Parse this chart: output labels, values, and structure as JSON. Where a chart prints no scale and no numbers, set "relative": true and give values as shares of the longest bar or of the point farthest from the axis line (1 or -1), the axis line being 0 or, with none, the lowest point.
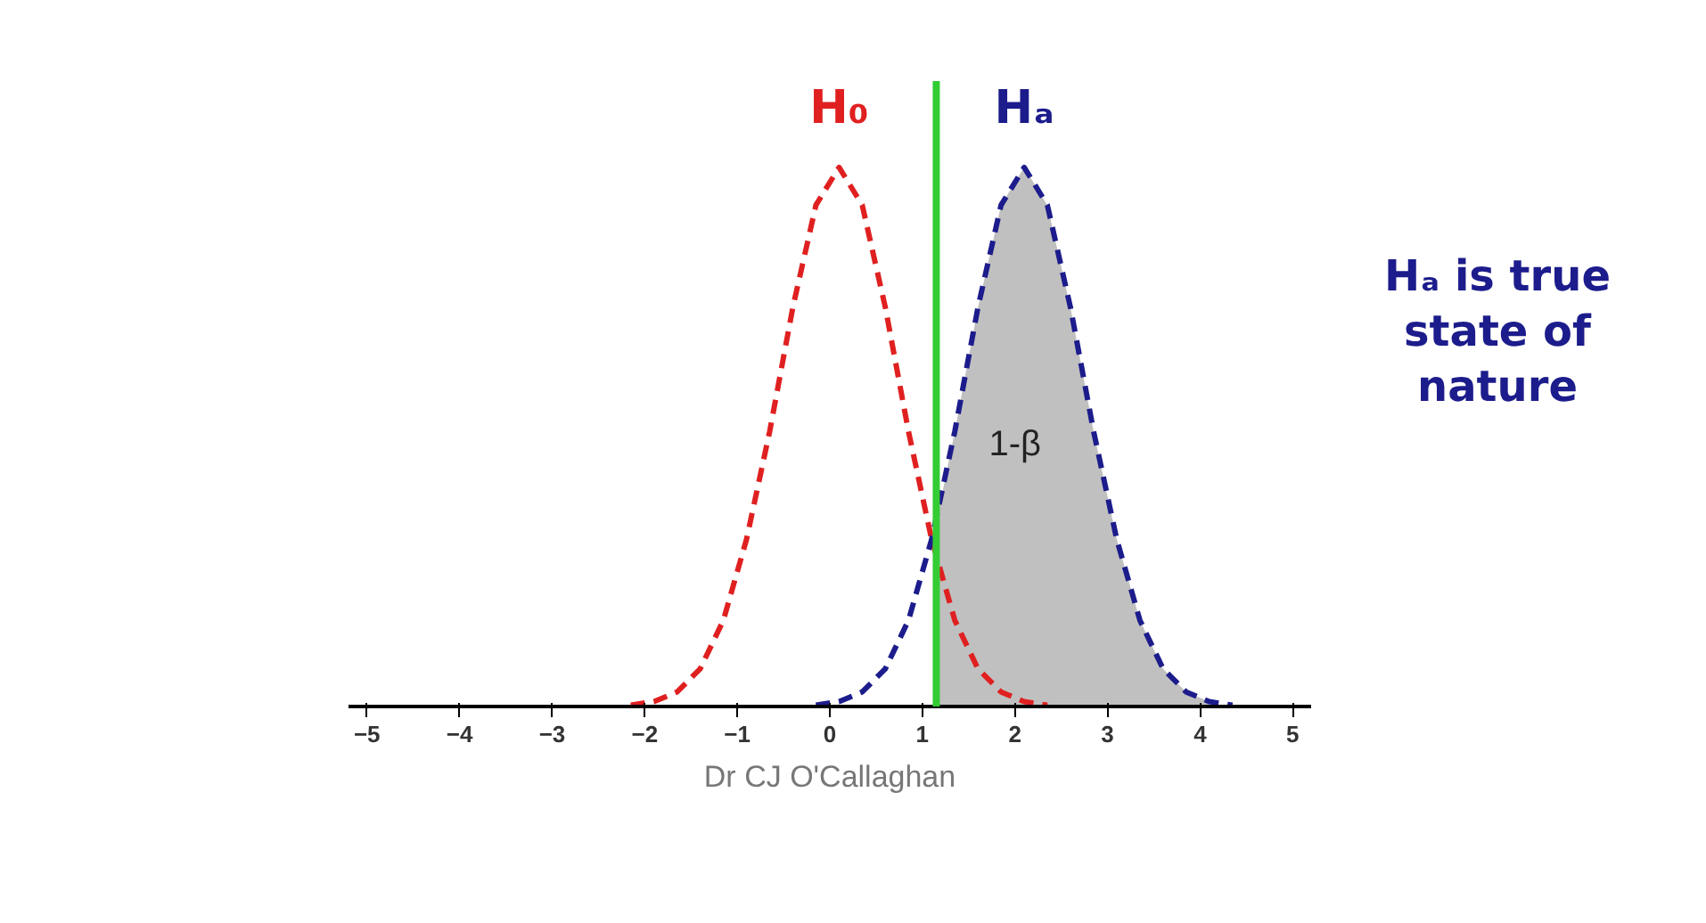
{
  "chart_data": {
    "type": "line",
    "relative": true,
    "xlim": [
      -5.2,
      5.2
    ],
    "xticks": [
      -5,
      -4,
      -3,
      -2,
      -1,
      0,
      1,
      2,
      3,
      4,
      5
    ],
    "tick_labels": "x",
    "grid": false,
    "legend": false,
    "line_style": "dashed",
    "marker": "none",
    "series": [
      {
        "type": "area",
        "color": "#c0c0c0",
        "x": [
          1.15,
          1.35,
          1.6,
          1.85,
          2.1,
          2.35,
          2.6,
          2.85,
          3.1,
          3.35,
          3.6,
          3.85,
          4.1
        ],
        "values": [
          0.34,
          0.51,
          0.74,
          0.93,
          1,
          0.93,
          0.74,
          0.51,
          0.31,
          0.16,
          0.07,
          0.027,
          0.009
        ]
      },
      {
        "name": "H₀",
        "color": "#e02020",
        "x": [
          -2.15,
          -1.9,
          -1.65,
          -1.4,
          -1.15,
          -0.9,
          -0.65,
          -0.4,
          -0.15,
          0.1,
          0.35,
          0.6,
          0.85,
          1.1,
          1.35,
          1.6,
          1.85,
          2.1,
          2.35
        ],
        "values": [
          0.0025,
          0.009,
          0.027,
          0.07,
          0.16,
          0.31,
          0.51,
          0.74,
          0.93,
          1,
          0.93,
          0.74,
          0.51,
          0.31,
          0.16,
          0.07,
          0.027,
          0.009,
          0.0025
        ]
      },
      {
        "name": "Hₐ",
        "color": "#1c1c8c",
        "x": [
          -0.15,
          0.1,
          0.35,
          0.6,
          0.85,
          1.1,
          1.35,
          1.6,
          1.85,
          2.1,
          2.35,
          2.6,
          2.85,
          3.1,
          3.35,
          3.6,
          3.85,
          4.1,
          4.35
        ],
        "values": [
          0.0025,
          0.009,
          0.027,
          0.07,
          0.16,
          0.31,
          0.51,
          0.74,
          0.93,
          1,
          0.93,
          0.74,
          0.51,
          0.31,
          0.16,
          0.07,
          0.027,
          0.009,
          0.0025
        ]
      }
    ],
    "ref_lines": [
      {
        "axis": "x",
        "value": 1.15,
        "color": "#33cc33",
        "line_style": "solid"
      }
    ],
    "annotations": [
      "1-β",
      "Hₐ is true state of nature",
      "Dr CJ O'Callaghan"
    ]
  }
}
